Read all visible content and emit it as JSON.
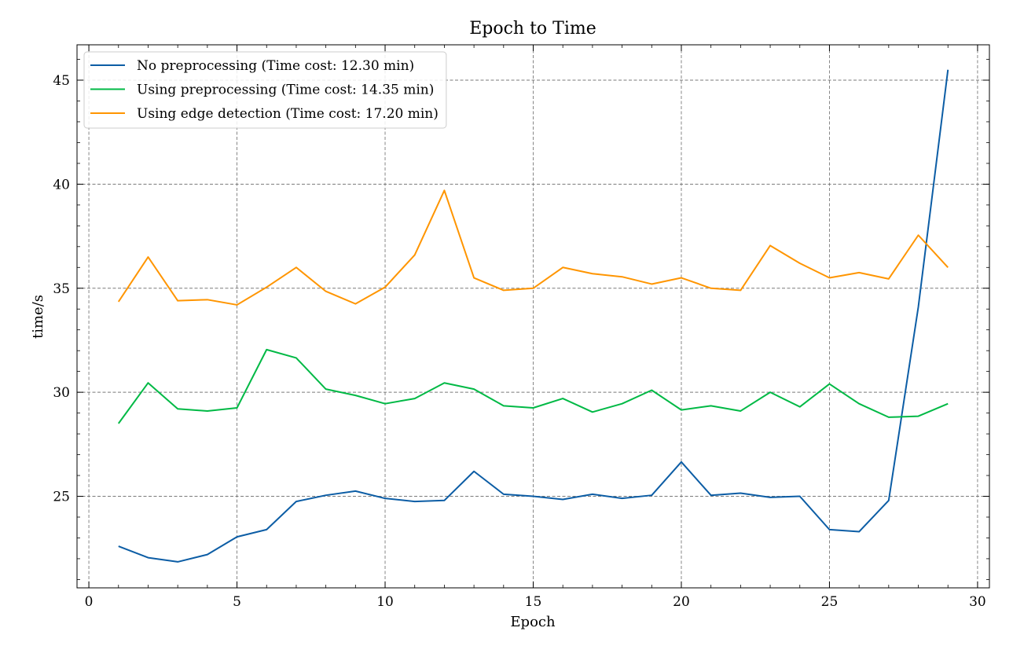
{
  "chart_data": {
    "type": "line",
    "title": "Epoch to Time",
    "xlabel": "Epoch",
    "ylabel": "time/s",
    "xlim": [
      -0.4,
      30.4
    ],
    "ylim": [
      20.6,
      46.7
    ],
    "xticks": [
      0,
      5,
      10,
      15,
      20,
      25,
      30
    ],
    "yticks": [
      25,
      30,
      35,
      40,
      45
    ],
    "grid": true,
    "legend_position": "top-left",
    "x": [
      1,
      2,
      3,
      4,
      5,
      6,
      7,
      8,
      9,
      10,
      11,
      12,
      13,
      14,
      15,
      16,
      17,
      18,
      19,
      20,
      21,
      22,
      23,
      24,
      25,
      26,
      27,
      28,
      29
    ],
    "series": [
      {
        "name": "No preprocessing (Time cost: 12.30 min)",
        "color": "#0C5DA5",
        "values": [
          22.6,
          22.05,
          21.85,
          22.2,
          23.05,
          23.4,
          24.75,
          25.05,
          25.25,
          24.9,
          24.75,
          24.8,
          26.2,
          25.1,
          25.0,
          24.85,
          25.1,
          24.9,
          25.05,
          26.65,
          25.05,
          25.15,
          24.95,
          25.0,
          23.4,
          23.3,
          24.8,
          34.1,
          45.5
        ]
      },
      {
        "name": "Using preprocessing (Time cost: 14.35 min)",
        "color": "#00B945",
        "values": [
          28.5,
          30.45,
          29.2,
          29.1,
          29.25,
          32.05,
          31.65,
          30.15,
          29.85,
          29.45,
          29.7,
          30.45,
          30.15,
          29.35,
          29.25,
          29.7,
          29.05,
          29.45,
          30.1,
          29.15,
          29.35,
          29.1,
          30.0,
          29.3,
          30.4,
          29.45,
          28.8,
          28.85,
          29.45
        ]
      },
      {
        "name": "Using edge detection (Time cost: 17.20 min)",
        "color": "#FF9500",
        "values": [
          34.35,
          36.5,
          34.4,
          34.45,
          34.2,
          35.05,
          36.0,
          34.85,
          34.25,
          35.05,
          36.6,
          39.7,
          35.5,
          34.9,
          35.0,
          36.0,
          35.7,
          35.55,
          35.2,
          35.5,
          35.0,
          34.9,
          37.05,
          36.2,
          35.5,
          35.75,
          35.45,
          37.55,
          36.0
        ]
      }
    ]
  }
}
